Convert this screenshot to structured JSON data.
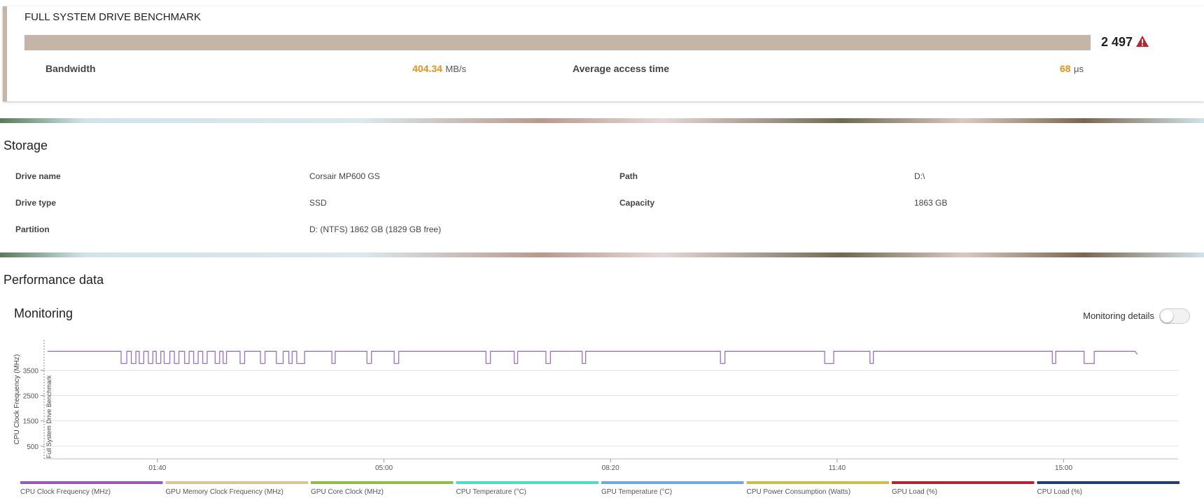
{
  "benchmark": {
    "title": "FULL SYSTEM DRIVE BENCHMARK",
    "score": "2 497",
    "bandwidth_label": "Bandwidth",
    "bandwidth_value": "404.34",
    "bandwidth_unit": "MB/s",
    "access_label": "Average access time",
    "access_value": "68",
    "access_unit": "μs"
  },
  "storage": {
    "title": "Storage",
    "rows": [
      [
        "Drive name",
        "Corsair MP600 GS",
        "Path",
        "D:\\"
      ],
      [
        "Drive type",
        "SSD",
        "Capacity",
        "1863 GB"
      ],
      [
        "Partition",
        "D: (NTFS) 1862 GB (1829 GB free)"
      ]
    ]
  },
  "performance": {
    "title": "Performance data",
    "monitoring_title": "Monitoring",
    "monitoring_details": "Monitoring details"
  },
  "chart_data": {
    "type": "line",
    "y_label": "CPU Clock Frequency (MHz)",
    "annotation": "Full System Drive Benchmark",
    "xlim": [
      0,
      1001
    ],
    "xticks": [
      {
        "value": 100,
        "label": "01:40"
      },
      {
        "value": 300,
        "label": "05:00"
      },
      {
        "value": 500,
        "label": "08:20"
      },
      {
        "value": 700,
        "label": "11:40"
      },
      {
        "value": 900,
        "label": "15:00"
      }
    ],
    "ylim": [
      0,
      4700
    ],
    "yticks": [
      500,
      1500,
      2500,
      3500
    ],
    "grid": true,
    "x": [
      3,
      68,
      68,
      73,
      73,
      77,
      77,
      81,
      81,
      84,
      84,
      88,
      88,
      92,
      92,
      96,
      96,
      99,
      99,
      103,
      103,
      106,
      106,
      111,
      111,
      115,
      115,
      119,
      119,
      124,
      124,
      128,
      128,
      132,
      132,
      136,
      136,
      140,
      140,
      144,
      144,
      151,
      151,
      155,
      155,
      158,
      158,
      161,
      161,
      173,
      173,
      177,
      177,
      191,
      191,
      195,
      195,
      205,
      205,
      211,
      211,
      216,
      216,
      219,
      219,
      223,
      223,
      230,
      230,
      254,
      254,
      257,
      257,
      285,
      285,
      289,
      289,
      309,
      309,
      313,
      313,
      390,
      390,
      394,
      394,
      415,
      415,
      418,
      418,
      443,
      443,
      447,
      447,
      475,
      475,
      478,
      478,
      597,
      597,
      601,
      601,
      689,
      689,
      697,
      697,
      729,
      729,
      732,
      732,
      890,
      890,
      893,
      893,
      918,
      918,
      927,
      927,
      963,
      965
    ],
    "series": [
      {
        "name": "CPU Clock Frequency (MHz)",
        "color": "#9b6fc7",
        "values": [
          4250,
          4250,
          3770,
          3770,
          4250,
          4250,
          3770,
          3770,
          4250,
          4250,
          3770,
          3770,
          4250,
          4250,
          3770,
          3770,
          4250,
          4250,
          3770,
          3770,
          4250,
          4250,
          3770,
          3770,
          4250,
          4250,
          3770,
          3770,
          4250,
          4250,
          3770,
          3770,
          4250,
          4250,
          3770,
          3770,
          4250,
          4250,
          3770,
          3770,
          4250,
          4250,
          3770,
          3770,
          4250,
          4250,
          3770,
          3770,
          4250,
          4250,
          3770,
          3770,
          4250,
          4250,
          3770,
          3770,
          4250,
          4250,
          3770,
          3770,
          4250,
          4250,
          3770,
          3770,
          4250,
          4250,
          3770,
          3770,
          4250,
          4250,
          3770,
          3770,
          4250,
          4250,
          3770,
          3770,
          4250,
          4250,
          3770,
          3770,
          4250,
          4250,
          3770,
          3770,
          4250,
          4250,
          3770,
          3770,
          4250,
          4250,
          3770,
          3770,
          4250,
          4250,
          3770,
          3770,
          4250,
          4250,
          3770,
          3770,
          4250,
          4250,
          3770,
          3770,
          4250,
          4250,
          3770,
          3770,
          4250,
          4250,
          3770,
          3770,
          4250,
          4250,
          3770,
          3770,
          4250,
          4250,
          4130
        ]
      }
    ],
    "legend": [
      {
        "name": "CPU Clock Frequency (MHz)",
        "color": "#9b59b6"
      },
      {
        "name": "GPU Memory Clock Frequency (MHz)",
        "color": "#dcc58e"
      },
      {
        "name": "GPU Core Clock (MHz)",
        "color": "#8cbf3f"
      },
      {
        "name": "CPU Temperature (°C)",
        "color": "#4fdcc4"
      },
      {
        "name": "GPU Temperature (°C)",
        "color": "#6fa8dc"
      },
      {
        "name": "CPU Power Consumption (Watts)",
        "color": "#c8c04a"
      },
      {
        "name": "GPU Load (%)",
        "color": "#c0202e"
      },
      {
        "name": "CPU Load (%)",
        "color": "#1f3f73"
      }
    ]
  }
}
